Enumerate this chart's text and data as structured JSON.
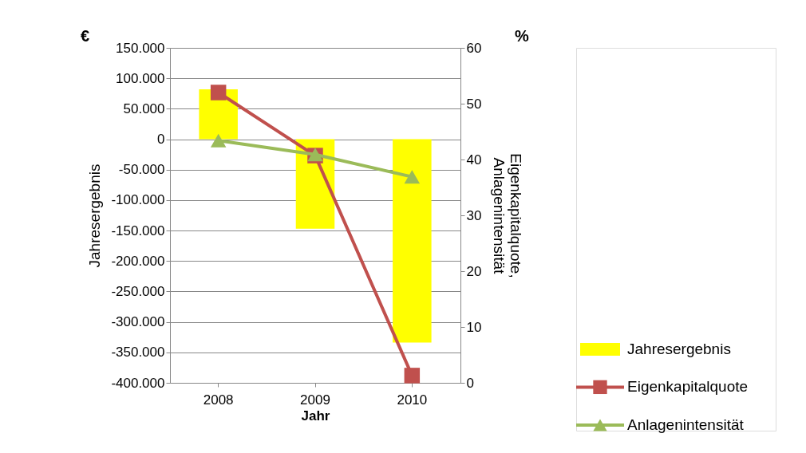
{
  "chart_data": {
    "type": "bar",
    "categories": [
      "2008",
      "2009",
      "2010"
    ],
    "xlabel": "Jahr",
    "ylabel": "Jahresergebnis",
    "y2label": "Eigenkapitalquote,\nAnlagenintensität",
    "annotations": [
      "€",
      "%"
    ],
    "ylim": [
      -400000,
      150000
    ],
    "yticks": [
      {
        "value": -400000,
        "label": "-400.000"
      },
      {
        "value": -350000,
        "label": "-350.000"
      },
      {
        "value": -300000,
        "label": "-300.000"
      },
      {
        "value": -250000,
        "label": "-250.000"
      },
      {
        "value": -200000,
        "label": "-200.000"
      },
      {
        "value": -150000,
        "label": "-150.000"
      },
      {
        "value": -100000,
        "label": "-100.000"
      },
      {
        "value": -50000,
        "label": "-50.000"
      },
      {
        "value": 0,
        "label": "0"
      },
      {
        "value": 50000,
        "label": "50.000"
      },
      {
        "value": 100000,
        "label": "100.000"
      },
      {
        "value": 150000,
        "label": "150.000"
      }
    ],
    "y2lim": [
      0,
      60
    ],
    "y2ticks": [
      0,
      10,
      20,
      30,
      40,
      50,
      60
    ],
    "grid": "y",
    "legend": "bottom right",
    "series": [
      {
        "name": "Jahresergebnis",
        "color": "#ffff00",
        "values": [
          82000,
          -147000,
          -334000
        ]
      },
      {
        "name": "Eigenkapitalquote",
        "type": "line",
        "axis": "y2",
        "color": "#c0504d",
        "marker": "square",
        "values": [
          52,
          40.7,
          1.3
        ]
      },
      {
        "name": "Anlagenintensität",
        "type": "line",
        "axis": "y2",
        "color": "#9bbb59",
        "marker": "triangle",
        "values": [
          43.4,
          40.9,
          36.9
        ]
      }
    ]
  }
}
